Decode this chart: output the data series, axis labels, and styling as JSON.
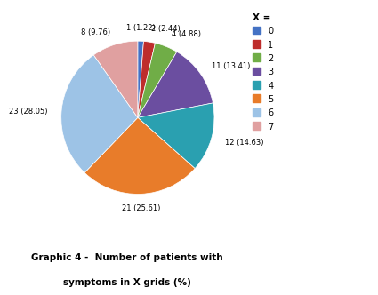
{
  "labels": [
    "0",
    "1",
    "2",
    "3",
    "4",
    "5",
    "6",
    "7"
  ],
  "values": [
    1,
    2,
    4,
    11,
    12,
    21,
    23,
    8
  ],
  "percentages": [
    1.22,
    2.44,
    4.88,
    13.41,
    14.63,
    25.61,
    28.05,
    9.76
  ],
  "colors": [
    "#4472c4",
    "#be2d2c",
    "#70ad47",
    "#6b4ea0",
    "#2aa0b0",
    "#e87c2a",
    "#9dc3e6",
    "#e0a0a0"
  ],
  "legend_labels": [
    "0",
    "1",
    "2",
    "3",
    "4",
    "5",
    "6",
    "7"
  ],
  "title_line1": "Graphic 4 -  Number of patients with",
  "title_line2": "symptoms in X grids (%)",
  "legend_title": "X = ",
  "background_color": "#ffffff",
  "label_fontsize": 6.0,
  "title_fontsize": 7.5
}
